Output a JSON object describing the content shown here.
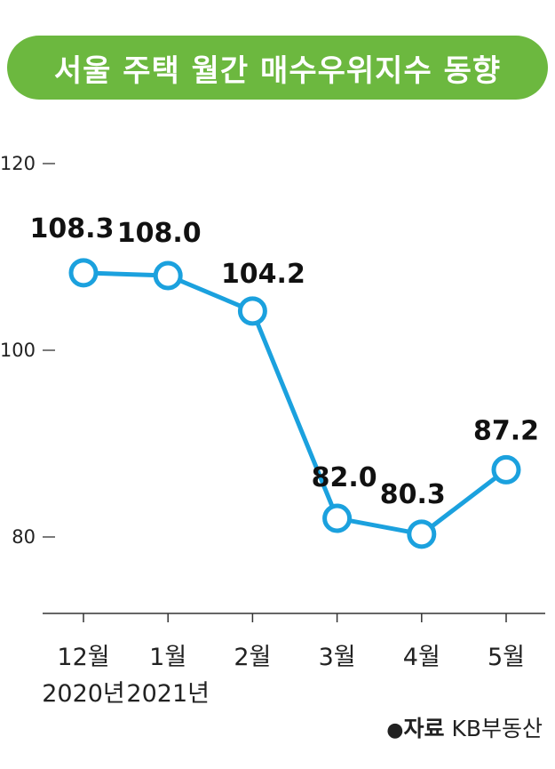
{
  "title": "서울 주택 월간 매수우위지수 동향",
  "colors": {
    "accent": "#6cb83f",
    "line": "#1ba1de",
    "text": "#222222",
    "axis": "#333333"
  },
  "chart_data": {
    "type": "line",
    "title": "서울 주택 월간 매수우위지수 동향",
    "categories": [
      "12월",
      "1월",
      "2월",
      "3월",
      "4월",
      "5월"
    ],
    "category_sublabels": [
      "2020년",
      "2021년",
      "",
      "",
      "",
      ""
    ],
    "series": [
      {
        "name": "매수우위지수",
        "values": [
          108.3,
          108.0,
          104.2,
          82.0,
          80.3,
          87.2
        ]
      }
    ],
    "data_labels": [
      "108.3",
      "108.0",
      "104.2",
      "82.0",
      "80.3",
      "87.2"
    ],
    "y_ticks": [
      120,
      100,
      80
    ],
    "y_tick_labels": [
      "120",
      "100",
      "80"
    ],
    "ylim": [
      71.5,
      121.7
    ],
    "xlabel": "",
    "ylabel": "",
    "grid": false
  },
  "source": {
    "label": "자료",
    "org": "KB부동산"
  }
}
